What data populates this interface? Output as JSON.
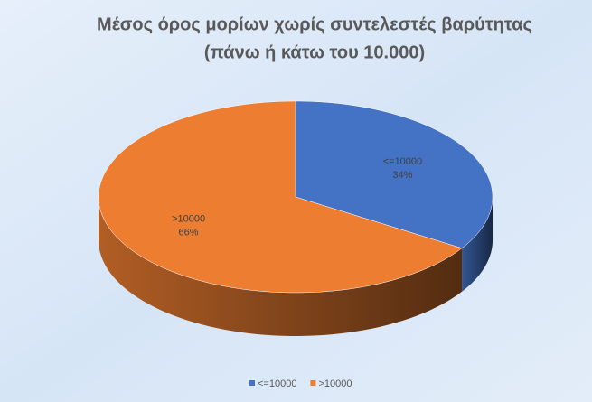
{
  "chart_data": {
    "type": "pie",
    "title": "Μέσος όρος μορίων χωρίς συντελεστές βαρύτητας",
    "subtitle": "(πάνω ή κάτω του 10.000)",
    "categories": [
      "<=10000",
      ">10000"
    ],
    "values": [
      34,
      66
    ],
    "value_labels": [
      "34%",
      "66%"
    ],
    "colors": [
      "#4472c4",
      "#ed7d31"
    ],
    "legend": "bottom"
  }
}
